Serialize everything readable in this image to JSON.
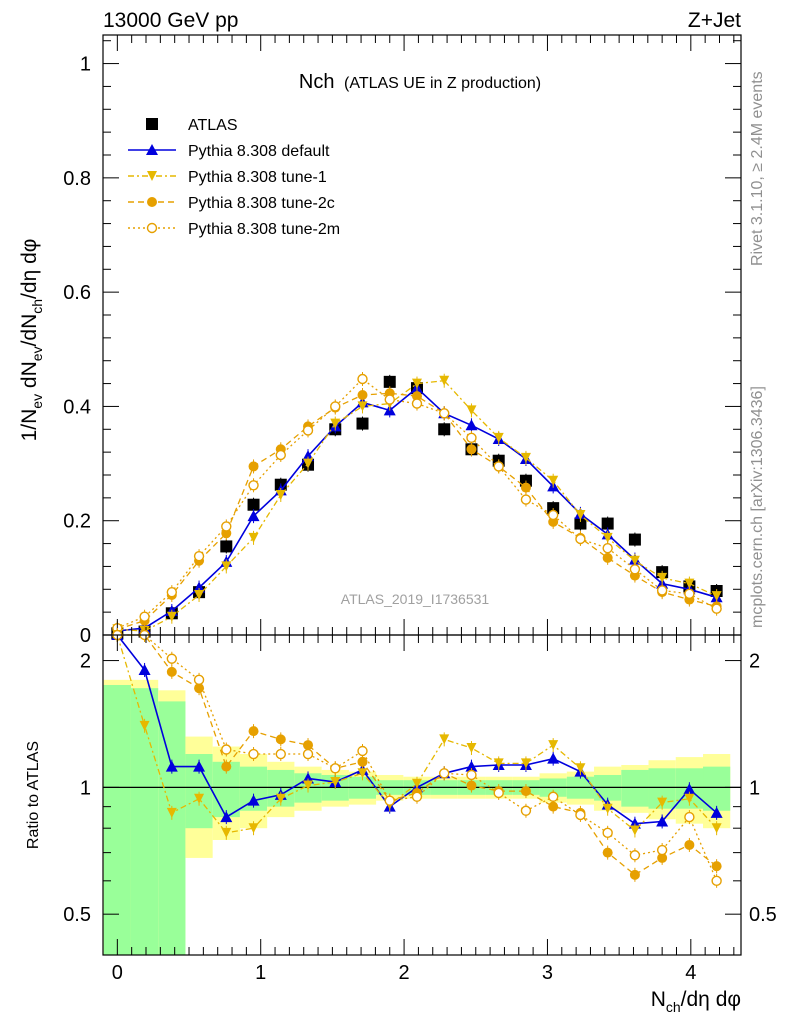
{
  "header": {
    "left": "13000 GeV pp",
    "right": "Z+Jet"
  },
  "side_labels": {
    "rivet": "Rivet 3.1.10, ≥ 2.4M events",
    "mcplots": "mcplots.cern.ch [arXiv:1306.3436]"
  },
  "watermark": "ATLAS_2019_I1736531",
  "chart_data": [
    {
      "type": "scatter",
      "panel": "main",
      "title": "Nch",
      "subtitle": "(ATLAS UE in Z production)",
      "ylabel": "1/N_ev dN_ev/dN_ch/dη dφ",
      "xlim": [
        -0.1,
        4.35
      ],
      "ylim": [
        0,
        1.05
      ],
      "xticks": [
        "0",
        "1",
        "2",
        "3",
        "4"
      ],
      "yticks": [
        "0",
        "0.2",
        "0.4",
        "0.6",
        "0.8",
        "1"
      ],
      "legend_position": "top-left",
      "x": [
        0.0,
        0.19,
        0.38,
        0.57,
        0.76,
        0.95,
        1.14,
        1.33,
        1.52,
        1.71,
        1.9,
        2.09,
        2.28,
        2.47,
        2.66,
        2.85,
        3.04,
        3.23,
        3.42,
        3.61,
        3.8,
        3.99,
        4.18
      ],
      "series": [
        {
          "name": "ATLAS",
          "style": "square",
          "color": "#000000",
          "values": [
            0.003,
            0.006,
            0.038,
            0.075,
            0.155,
            0.228,
            0.263,
            0.298,
            0.36,
            0.37,
            0.443,
            0.432,
            0.36,
            0.325,
            0.305,
            0.27,
            0.222,
            0.195,
            0.195,
            0.167,
            0.11,
            0.085,
            0.077
          ]
        },
        {
          "name": "Pythia 8.308 default",
          "style": "triangle-solid",
          "color": "#0000dd",
          "values": [
            0.007,
            0.012,
            0.042,
            0.083,
            0.128,
            0.208,
            0.253,
            0.313,
            0.365,
            0.407,
            0.393,
            0.432,
            0.388,
            0.367,
            0.343,
            0.308,
            0.26,
            0.212,
            0.176,
            0.132,
            0.09,
            0.08,
            0.066
          ]
        },
        {
          "name": "Pythia 8.308 tune-1",
          "style": "triangle-down-dashdot",
          "color": "#e6b800",
          "values": [
            0.01,
            0.007,
            0.032,
            0.07,
            0.12,
            0.17,
            0.245,
            0.3,
            0.37,
            0.4,
            0.405,
            0.44,
            0.445,
            0.393,
            0.345,
            0.31,
            0.27,
            0.21,
            0.17,
            0.13,
            0.1,
            0.09,
            0.068
          ]
        },
        {
          "name": "Pythia 8.308 tune-2c",
          "style": "circle-solid-dashed",
          "color": "#e6a000",
          "values": [
            0.01,
            0.025,
            0.07,
            0.13,
            0.178,
            0.295,
            0.325,
            0.365,
            0.398,
            0.42,
            0.423,
            0.418,
            0.388,
            0.325,
            0.295,
            0.258,
            0.198,
            0.17,
            0.135,
            0.104,
            0.075,
            0.062,
            0.05
          ]
        },
        {
          "name": "Pythia 8.308 tune-2m",
          "style": "circle-open-dotted",
          "color": "#e6a000",
          "values": [
            0.012,
            0.032,
            0.075,
            0.138,
            0.19,
            0.262,
            0.315,
            0.358,
            0.4,
            0.448,
            0.412,
            0.405,
            0.388,
            0.345,
            0.295,
            0.237,
            0.21,
            0.168,
            0.152,
            0.115,
            0.078,
            0.072,
            0.046
          ]
        }
      ]
    },
    {
      "type": "scatter",
      "panel": "ratio",
      "ylabel": "Ratio to ATLAS",
      "xlabel": "N_ch/dη dφ",
      "xlim": [
        -0.1,
        4.35
      ],
      "ylim": [
        0.4,
        2.3
      ],
      "xticks": [
        "0",
        "1",
        "2",
        "3",
        "4"
      ],
      "yticks": [
        "0.5",
        "1",
        "2"
      ],
      "reference_line": 1,
      "band_inner_halfwidth": [
        0.75,
        0.72,
        0.6,
        0.2,
        0.15,
        0.12,
        0.1,
        0.08,
        0.07,
        0.06,
        0.04,
        0.04,
        0.04,
        0.04,
        0.04,
        0.04,
        0.05,
        0.06,
        0.07,
        0.1,
        0.11,
        0.11,
        0.12
      ],
      "band_outer_halfwidth": [
        0.8,
        0.8,
        0.7,
        0.32,
        0.25,
        0.2,
        0.15,
        0.12,
        0.1,
        0.09,
        0.07,
        0.06,
        0.06,
        0.06,
        0.06,
        0.06,
        0.08,
        0.09,
        0.12,
        0.13,
        0.16,
        0.18,
        0.2
      ],
      "x": [
        0.0,
        0.19,
        0.38,
        0.57,
        0.76,
        0.95,
        1.14,
        1.33,
        1.52,
        1.71,
        1.9,
        2.09,
        2.28,
        2.47,
        2.66,
        2.85,
        3.04,
        3.23,
        3.42,
        3.61,
        3.8,
        3.99,
        4.18
      ],
      "series": [
        {
          "name": "Pythia 8.308 default",
          "style": "triangle-solid",
          "color": "#0000dd",
          "values": [
            2.3,
            1.9,
            1.12,
            1.12,
            0.85,
            0.93,
            0.96,
            1.05,
            1.03,
            1.1,
            0.9,
            1.0,
            1.08,
            1.12,
            1.13,
            1.13,
            1.17,
            1.09,
            0.91,
            0.82,
            0.83,
            0.99,
            0.87
          ]
        },
        {
          "name": "Pythia 8.308 tune-1",
          "style": "triangle-down-dashdot",
          "color": "#e6b800",
          "values": [
            2.3,
            1.4,
            0.87,
            0.94,
            0.78,
            0.8,
            0.94,
            1.01,
            1.03,
            1.08,
            0.91,
            1.02,
            1.3,
            1.24,
            1.14,
            1.14,
            1.26,
            1.11,
            0.89,
            0.79,
            0.92,
            0.94,
            0.8
          ]
        },
        {
          "name": "Pythia 8.308 tune-2c",
          "style": "circle-solid-dashed",
          "color": "#e6a000",
          "values": [
            2.3,
            2.3,
            1.88,
            1.72,
            1.12,
            1.36,
            1.3,
            1.26,
            1.11,
            1.15,
            0.93,
            0.97,
            1.08,
            1.01,
            0.98,
            0.98,
            0.9,
            0.87,
            0.7,
            0.62,
            0.68,
            0.73,
            0.65
          ]
        },
        {
          "name": "Pythia 8.308 tune-2m",
          "style": "circle-open-dotted",
          "color": "#e6a000",
          "values": [
            2.3,
            2.3,
            2.02,
            1.8,
            1.23,
            1.2,
            1.2,
            1.2,
            1.11,
            1.22,
            0.93,
            0.95,
            1.08,
            1.07,
            0.97,
            0.88,
            0.95,
            0.86,
            0.78,
            0.69,
            0.71,
            0.85,
            0.6
          ]
        }
      ]
    }
  ]
}
